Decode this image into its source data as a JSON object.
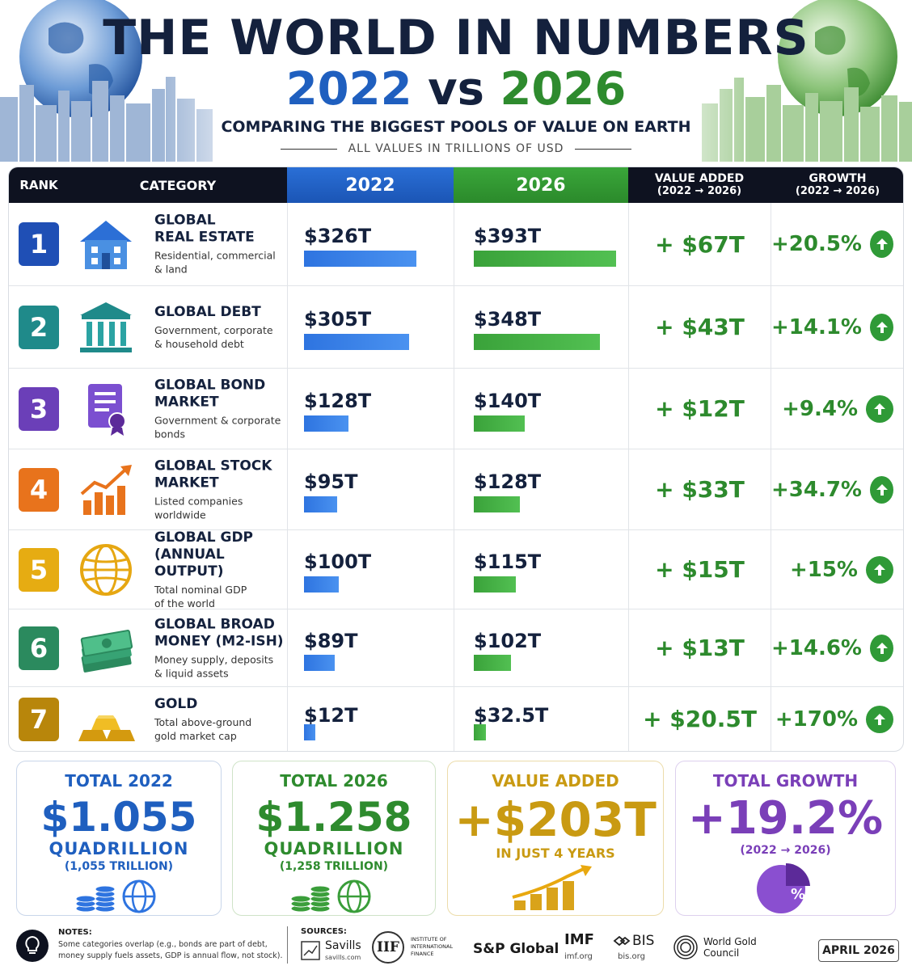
{
  "header": {
    "title": "THE WORLD IN NUMBERS",
    "year_a": "2022",
    "vs": "vs",
    "year_b": "2026",
    "tagline": "COMPARING THE BIGGEST POOLS OF VALUE ON EARTH",
    "units_note": "ALL VALUES IN TRILLIONS OF USD"
  },
  "columns": {
    "rank": "RANK",
    "category": "CATEGORY",
    "year_a": "2022",
    "year_b": "2026",
    "value_added": "VALUE ADDED",
    "value_added_sub": "(2022 → 2026)",
    "growth": "GROWTH",
    "growth_sub": "(2022 → 2026)"
  },
  "colors": {
    "blue": "#1f5fbf",
    "green": "#2e8b2e",
    "gold": "#c99a12",
    "purple": "#7a3fb8",
    "navy": "#14213d"
  },
  "chart_data": {
    "type": "table",
    "units": "trillions USD",
    "rows": [
      {
        "rank": "1",
        "name": "GLOBAL\nREAL ESTATE",
        "desc": "Residential, commercial\n& land",
        "v2022_label": "$326T",
        "v2026_label": "$393T",
        "v2022": 326,
        "v2026": 393,
        "added": "+ $67T",
        "growth": "+20.5%",
        "icon": "house-icon",
        "badge_color": "#1f4fb5"
      },
      {
        "rank": "2",
        "name": "GLOBAL DEBT",
        "desc": "Government, corporate\n& household debt",
        "v2022_label": "$305T",
        "v2026_label": "$348T",
        "v2022": 305,
        "v2026": 348,
        "added": "+ $43T",
        "growth": "+14.1%",
        "icon": "bank-building-icon",
        "badge_color": "#1f8a8a"
      },
      {
        "rank": "3",
        "name": "GLOBAL BOND\nMARKET",
        "desc": "Government & corporate\nbonds",
        "v2022_label": "$128T",
        "v2026_label": "$140T",
        "v2022": 128,
        "v2026": 140,
        "added": "+ $12T",
        "growth": "+9.4%",
        "icon": "certificate-icon",
        "badge_color": "#6b3fb8"
      },
      {
        "rank": "4",
        "name": "GLOBAL STOCK\nMARKET",
        "desc": "Listed companies\nworldwide",
        "v2022_label": "$95T",
        "v2026_label": "$128T",
        "v2022": 95,
        "v2026": 128,
        "added": "+ $33T",
        "growth": "+34.7%",
        "icon": "stock-chart-icon",
        "badge_color": "#e8731c"
      },
      {
        "rank": "5",
        "name": "GLOBAL GDP\n(ANNUAL OUTPUT)",
        "desc": "Total nominal GDP\nof the world",
        "v2022_label": "$100T",
        "v2026_label": "$115T",
        "v2022": 100,
        "v2026": 115,
        "added": "+ $15T",
        "growth": "+15%",
        "icon": "globe-icon",
        "badge_color": "#e6ac12"
      },
      {
        "rank": "6",
        "name": "GLOBAL BROAD\nMONEY (M2-ISH)",
        "desc": "Money supply, deposits\n& liquid assets",
        "v2022_label": "$89T",
        "v2026_label": "$102T",
        "v2022": 89,
        "v2026": 102,
        "added": "+ $13T",
        "growth": "+14.6%",
        "icon": "cash-stack-icon",
        "badge_color": "#2b8a5e"
      },
      {
        "rank": "7",
        "name": "GOLD",
        "desc": "Total above-ground\ngold market cap",
        "v2022_label": "$12T",
        "v2026_label": "$32.5T",
        "v2022": 12,
        "v2026": 32.5,
        "added": "+ $20.5T",
        "growth": "+170%",
        "icon": "gold-bars-icon",
        "badge_color": "#b8860b"
      }
    ]
  },
  "totals": {
    "total_2022": {
      "title": "TOTAL 2022",
      "big": "$1.055",
      "unit": "QUADRILLION",
      "sub": "(1,055 TRILLION)"
    },
    "total_2026": {
      "title": "TOTAL 2026",
      "big": "$1.258",
      "unit": "QUADRILLION",
      "sub": "(1,258 TRILLION)"
    },
    "value_added": {
      "title": "VALUE ADDED",
      "big": "+$203T",
      "sub": "IN JUST 4 YEARS"
    },
    "total_growth": {
      "title": "TOTAL GROWTH",
      "big": "+19.2%",
      "sub": "(2022 → 2026)",
      "pie_label": "%"
    }
  },
  "footer": {
    "notes_title": "NOTES:",
    "notes_text": "Some categories overlap (e.g., bonds are part of debt, money supply fuels assets, GDP is annual flow, not stock).",
    "sources_title": "SOURCES:",
    "sources": {
      "savills": "Savills",
      "savills_url": "savills.com",
      "iif": "IIF",
      "iif_name": "INSTITUTE OF\nINTERNATIONAL\nFINANCE",
      "sp": "S&P Global",
      "imf": "IMF",
      "imf_url": "imf.org",
      "bis": "BIS",
      "bis_url": "bis.org",
      "wgc": "World Gold\nCouncil"
    },
    "date": "APRIL 2026"
  }
}
